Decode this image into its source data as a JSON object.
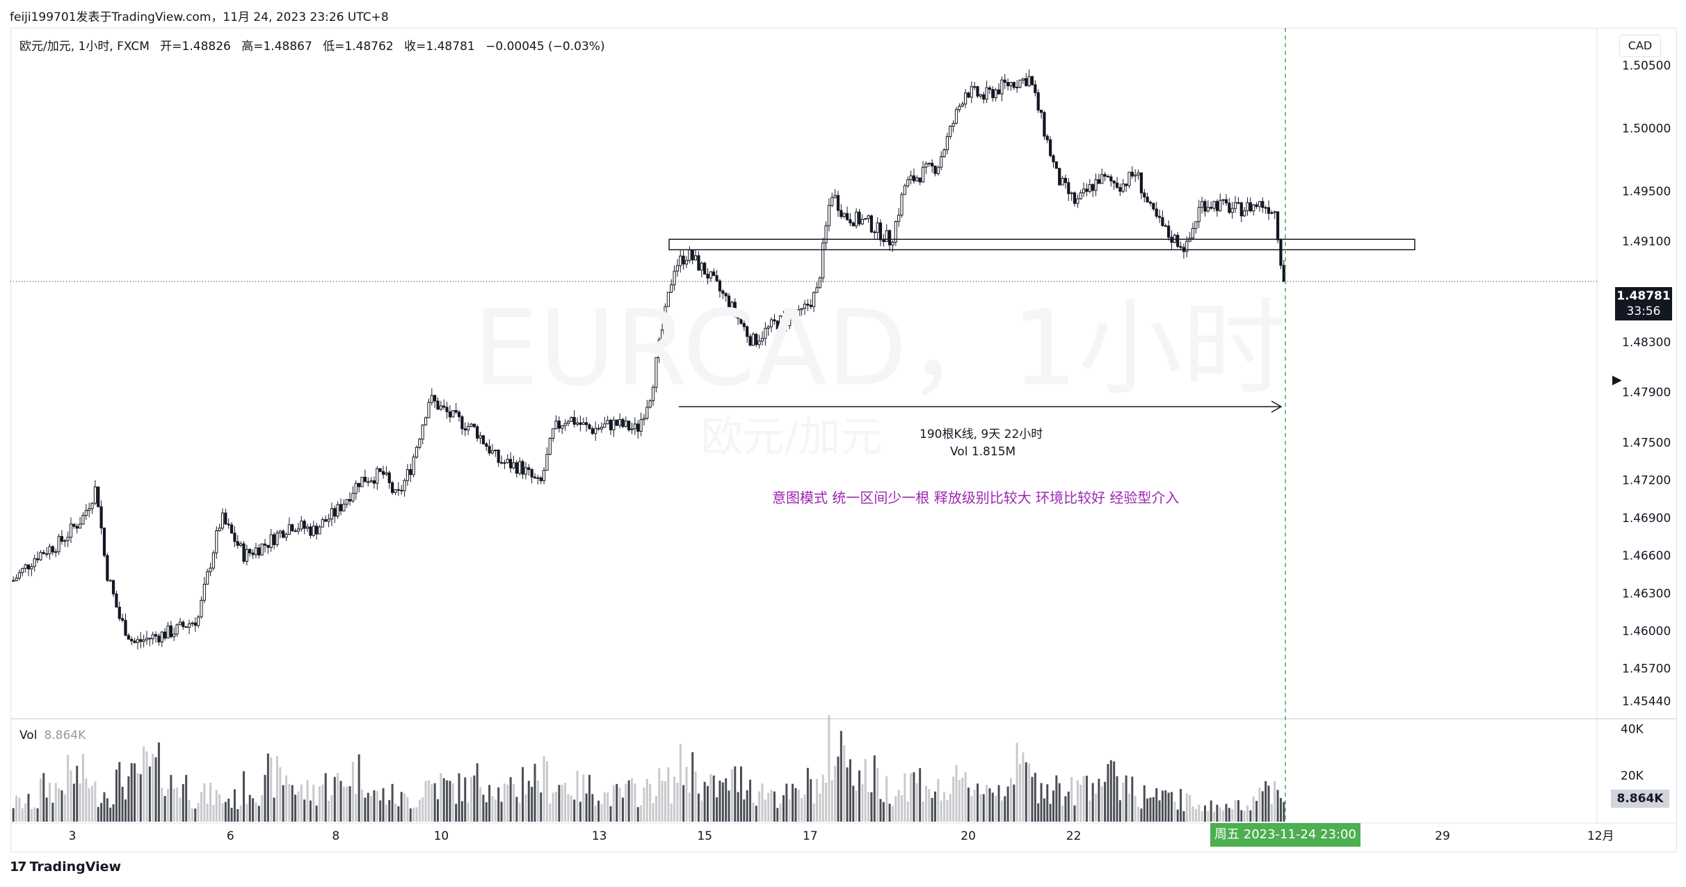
{
  "header": {
    "publish_line": "feiji199701发表于TradingView.com，11月 24, 2023 23:26 UTC+8"
  },
  "legend": {
    "symbol": "欧元/加元, 1小时, FXCM",
    "open": "开=1.48826",
    "high": "高=1.48867",
    "low": "低=1.48762",
    "close": "收=1.48781",
    "change": "−0.00045 (−0.03%)"
  },
  "currency": "CAD",
  "watermark": {
    "main": "EURCAD，1小时",
    "sub": "欧元/加元"
  },
  "last_price": {
    "price": "1.48781",
    "countdown": "33:56"
  },
  "volume_legend": {
    "label": "Vol",
    "value": "8.864K"
  },
  "volume_last": "8.864K",
  "crosshair_date": "周五 2023-11-24   23:00",
  "measure": {
    "bars": "190根K线, 9天 22小时",
    "vol": "Vol 1.815M"
  },
  "note": "意图模式 统一区间少一根 释放级别比较大 环境比较好 经验型介入",
  "branding": {
    "logo": "TradingView",
    "mark": "17"
  },
  "colors": {
    "candle": "#131722",
    "volume": "#000000",
    "note": "#9c27b0",
    "crosshair": "#4caf50",
    "tag_bg": "#131722"
  },
  "chart_data": {
    "type": "candlestick",
    "symbol": "EURCAD",
    "timeframe": "1小时",
    "price_axis": {
      "ticks": [
        "1.50500",
        "1.50000",
        "1.49500",
        "1.49100",
        "1.48300",
        "1.47900",
        "1.47500",
        "1.47200",
        "1.46900",
        "1.46600",
        "1.46300",
        "1.46000",
        "1.45700",
        "1.45440"
      ],
      "range": [
        1.453,
        1.508
      ]
    },
    "time_axis": {
      "ticks": [
        {
          "label": "3",
          "x_day": 3
        },
        {
          "label": "6",
          "x_day": 6
        },
        {
          "label": "8",
          "x_day": 8
        },
        {
          "label": "10",
          "x_day": 10
        },
        {
          "label": "13",
          "x_day": 13
        },
        {
          "label": "15",
          "x_day": 15
        },
        {
          "label": "17",
          "x_day": 17
        },
        {
          "label": "20",
          "x_day": 20
        },
        {
          "label": "22",
          "x_day": 22
        },
        {
          "label": "29",
          "x_day": 29
        },
        {
          "label": "12月",
          "x_day": 32
        }
      ]
    },
    "volume_axis": {
      "ticks": [
        "40K",
        "20K"
      ],
      "max": 42000
    },
    "horizontal_zone": [
      1.4905,
      1.491
    ],
    "last_close": 1.48781,
    "price_path": [
      [
        1,
        1.464
      ],
      [
        1.5,
        1.466
      ],
      [
        2,
        1.467
      ],
      [
        2.5,
        1.469
      ],
      [
        2.8,
        1.4715
      ],
      [
        3,
        1.465
      ],
      [
        3.3,
        1.461
      ],
      [
        3.6,
        1.459
      ],
      [
        4,
        1.4595
      ],
      [
        4.5,
        1.46
      ],
      [
        5,
        1.461
      ],
      [
        5.3,
        1.466
      ],
      [
        5.5,
        1.469
      ],
      [
        6,
        1.466
      ],
      [
        6.5,
        1.467
      ],
      [
        7,
        1.4685
      ],
      [
        7.5,
        1.468
      ],
      [
        8,
        1.4695
      ],
      [
        8.5,
        1.472
      ],
      [
        9,
        1.4725
      ],
      [
        9.3,
        1.4705
      ],
      [
        9.6,
        1.473
      ],
      [
        10,
        1.4785
      ],
      [
        10.5,
        1.477
      ],
      [
        11,
        1.476
      ],
      [
        11.5,
        1.4735
      ],
      [
        12,
        1.473
      ],
      [
        12.4,
        1.4715
      ],
      [
        12.7,
        1.476
      ],
      [
        13,
        1.477
      ],
      [
        13.5,
        1.476
      ],
      [
        14,
        1.4765
      ],
      [
        14.5,
        1.476
      ],
      [
        14.8,
        1.479
      ],
      [
        15,
        1.483
      ],
      [
        15.3,
        1.489
      ],
      [
        15.6,
        1.49
      ],
      [
        16,
        1.4885
      ],
      [
        16.5,
        1.486
      ],
      [
        17,
        1.483
      ],
      [
        17.5,
        1.4845
      ],
      [
        18,
        1.485
      ],
      [
        18.4,
        1.487
      ],
      [
        18.7,
        1.495
      ],
      [
        19,
        1.493
      ],
      [
        19.5,
        1.4925
      ],
      [
        20,
        1.491
      ],
      [
        20.3,
        1.4955
      ],
      [
        20.7,
        1.4965
      ],
      [
        21,
        1.497
      ],
      [
        21.3,
        1.5
      ],
      [
        21.6,
        1.503
      ],
      [
        22,
        1.5025
      ],
      [
        22.5,
        1.5035
      ],
      [
        23,
        1.504
      ],
      [
        23.3,
        1.5
      ],
      [
        23.6,
        1.496
      ],
      [
        24,
        1.494
      ],
      [
        24.5,
        1.496
      ],
      [
        25,
        1.4955
      ],
      [
        25.3,
        1.4965
      ],
      [
        25.6,
        1.4935
      ],
      [
        26,
        1.4915
      ],
      [
        26.4,
        1.4905
      ],
      [
        26.7,
        1.494
      ],
      [
        27,
        1.494
      ],
      [
        27.5,
        1.4935
      ],
      [
        28,
        1.494
      ],
      [
        28.3,
        1.4935
      ],
      [
        28.5,
        1.4878
      ]
    ],
    "volume_levels": [
      0.25,
      0.45,
      0.6,
      0.4,
      0.55,
      0.7,
      0.5,
      0.35,
      0.3,
      0.45,
      0.6,
      0.4,
      0.5,
      0.65,
      0.35,
      0.3,
      0.5,
      0.45,
      0.55,
      0.4,
      0.6,
      0.5,
      0.45,
      0.35,
      0.4,
      0.5,
      0.7,
      0.45,
      0.55,
      0.4,
      0.35,
      0.5,
      0.95,
      0.6,
      0.45,
      0.55,
      0.4,
      0.5,
      0.45,
      0.7,
      0.5,
      0.4,
      0.6,
      0.55,
      0.35,
      0.3,
      0.25,
      0.2,
      0.3,
      0.45
    ]
  }
}
